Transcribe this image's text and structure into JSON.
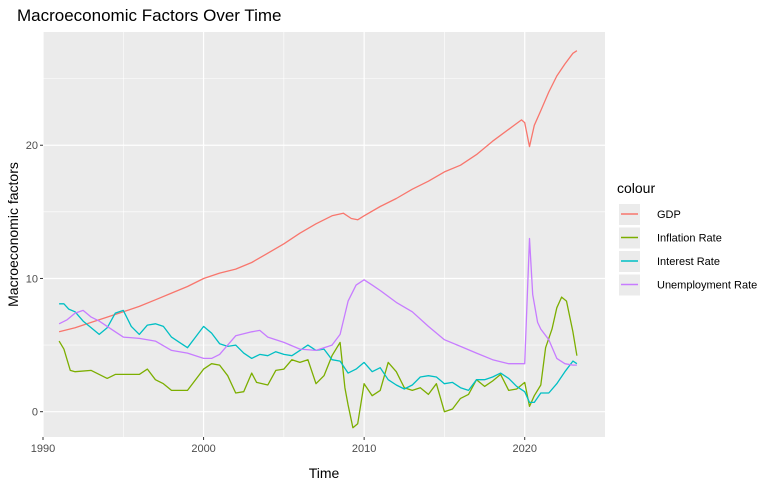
{
  "chart_data": {
    "type": "line",
    "title": "Macroeconomic Factors Over Time",
    "xlabel": "Time",
    "ylabel": "Macroeconomic factors",
    "xlim": [
      1990,
      2025
    ],
    "ylim": [
      -1.9,
      28.5
    ],
    "x_ticks": [
      1990,
      2000,
      2010,
      2020
    ],
    "y_ticks": [
      0,
      10,
      20
    ],
    "grid": true,
    "legend_title": "colour",
    "legend_position": "right",
    "series": [
      {
        "name": "GDP",
        "color": "#F8766D",
        "points": [
          [
            1991.0,
            6.0
          ],
          [
            1992.0,
            6.3
          ],
          [
            1993.0,
            6.7
          ],
          [
            1994.0,
            7.1
          ],
          [
            1995.0,
            7.5
          ],
          [
            1996.0,
            7.9
          ],
          [
            1997.0,
            8.4
          ],
          [
            1998.0,
            8.9
          ],
          [
            1999.0,
            9.4
          ],
          [
            2000.0,
            10.0
          ],
          [
            2001.0,
            10.4
          ],
          [
            2002.0,
            10.7
          ],
          [
            2003.0,
            11.2
          ],
          [
            2004.0,
            11.9
          ],
          [
            2005.0,
            12.6
          ],
          [
            2006.0,
            13.4
          ],
          [
            2007.0,
            14.1
          ],
          [
            2008.0,
            14.7
          ],
          [
            2008.7,
            14.9
          ],
          [
            2009.2,
            14.5
          ],
          [
            2009.6,
            14.4
          ],
          [
            2010.0,
            14.7
          ],
          [
            2011.0,
            15.4
          ],
          [
            2012.0,
            16.0
          ],
          [
            2013.0,
            16.7
          ],
          [
            2014.0,
            17.3
          ],
          [
            2015.0,
            18.0
          ],
          [
            2016.0,
            18.5
          ],
          [
            2017.0,
            19.3
          ],
          [
            2018.0,
            20.3
          ],
          [
            2019.0,
            21.2
          ],
          [
            2019.8,
            21.9
          ],
          [
            2020.0,
            21.7
          ],
          [
            2020.3,
            19.9
          ],
          [
            2020.6,
            21.5
          ],
          [
            2021.0,
            22.6
          ],
          [
            2021.5,
            24.0
          ],
          [
            2022.0,
            25.2
          ],
          [
            2022.5,
            26.1
          ],
          [
            2023.0,
            26.9
          ],
          [
            2023.25,
            27.1
          ]
        ]
      },
      {
        "name": "Inflation Rate",
        "color": "#7CAE00",
        "points": [
          [
            1991.0,
            5.3
          ],
          [
            1991.3,
            4.7
          ],
          [
            1991.7,
            3.1
          ],
          [
            1992.0,
            3.0
          ],
          [
            1993.0,
            3.1
          ],
          [
            1994.0,
            2.5
          ],
          [
            1994.5,
            2.8
          ],
          [
            1995.0,
            2.8
          ],
          [
            1996.0,
            2.8
          ],
          [
            1996.5,
            3.2
          ],
          [
            1997.0,
            2.4
          ],
          [
            1997.5,
            2.1
          ],
          [
            1998.0,
            1.6
          ],
          [
            1999.0,
            1.6
          ],
          [
            2000.0,
            3.2
          ],
          [
            2000.5,
            3.6
          ],
          [
            2001.0,
            3.5
          ],
          [
            2001.5,
            2.7
          ],
          [
            2002.0,
            1.4
          ],
          [
            2002.5,
            1.5
          ],
          [
            2003.0,
            2.9
          ],
          [
            2003.3,
            2.2
          ],
          [
            2004.0,
            2.0
          ],
          [
            2004.5,
            3.1
          ],
          [
            2005.0,
            3.2
          ],
          [
            2005.5,
            3.9
          ],
          [
            2006.0,
            3.7
          ],
          [
            2006.5,
            3.9
          ],
          [
            2007.0,
            2.1
          ],
          [
            2007.5,
            2.7
          ],
          [
            2008.0,
            4.2
          ],
          [
            2008.5,
            5.2
          ],
          [
            2008.8,
            1.8
          ],
          [
            2009.0,
            0.5
          ],
          [
            2009.3,
            -1.2
          ],
          [
            2009.6,
            -0.9
          ],
          [
            2010.0,
            2.1
          ],
          [
            2010.5,
            1.2
          ],
          [
            2011.0,
            1.6
          ],
          [
            2011.5,
            3.7
          ],
          [
            2012.0,
            3.0
          ],
          [
            2012.5,
            1.8
          ],
          [
            2013.0,
            1.6
          ],
          [
            2013.5,
            1.8
          ],
          [
            2014.0,
            1.3
          ],
          [
            2014.5,
            2.1
          ],
          [
            2015.0,
            0.0
          ],
          [
            2015.5,
            0.2
          ],
          [
            2016.0,
            1.0
          ],
          [
            2016.5,
            1.3
          ],
          [
            2017.0,
            2.4
          ],
          [
            2017.5,
            1.9
          ],
          [
            2018.0,
            2.3
          ],
          [
            2018.5,
            2.8
          ],
          [
            2019.0,
            1.6
          ],
          [
            2019.5,
            1.7
          ],
          [
            2020.0,
            2.2
          ],
          [
            2020.3,
            0.4
          ],
          [
            2020.6,
            1.2
          ],
          [
            2021.0,
            2.0
          ],
          [
            2021.3,
            4.8
          ],
          [
            2021.7,
            6.2
          ],
          [
            2022.0,
            7.8
          ],
          [
            2022.3,
            8.6
          ],
          [
            2022.6,
            8.3
          ],
          [
            2023.0,
            6.0
          ],
          [
            2023.25,
            4.2
          ]
        ]
      },
      {
        "name": "Interest Rate",
        "color": "#00BFC4",
        "points": [
          [
            1991.0,
            8.1
          ],
          [
            1991.3,
            8.1
          ],
          [
            1991.6,
            7.7
          ],
          [
            1992.0,
            7.5
          ],
          [
            1992.5,
            6.8
          ],
          [
            1993.0,
            6.3
          ],
          [
            1993.5,
            5.8
          ],
          [
            1994.0,
            6.3
          ],
          [
            1994.5,
            7.4
          ],
          [
            1995.0,
            7.6
          ],
          [
            1995.5,
            6.4
          ],
          [
            1996.0,
            5.8
          ],
          [
            1996.5,
            6.5
          ],
          [
            1997.0,
            6.6
          ],
          [
            1997.5,
            6.4
          ],
          [
            1998.0,
            5.6
          ],
          [
            1998.5,
            5.2
          ],
          [
            1999.0,
            4.8
          ],
          [
            1999.5,
            5.6
          ],
          [
            2000.0,
            6.4
          ],
          [
            2000.5,
            5.9
          ],
          [
            2001.0,
            5.1
          ],
          [
            2001.5,
            4.9
          ],
          [
            2002.0,
            5.0
          ],
          [
            2002.5,
            4.4
          ],
          [
            2003.0,
            4.0
          ],
          [
            2003.5,
            4.3
          ],
          [
            2004.0,
            4.2
          ],
          [
            2004.5,
            4.5
          ],
          [
            2005.0,
            4.3
          ],
          [
            2005.5,
            4.2
          ],
          [
            2006.0,
            4.6
          ],
          [
            2006.5,
            5.0
          ],
          [
            2007.0,
            4.6
          ],
          [
            2007.5,
            4.7
          ],
          [
            2008.0,
            3.9
          ],
          [
            2008.5,
            3.8
          ],
          [
            2009.0,
            2.9
          ],
          [
            2009.5,
            3.2
          ],
          [
            2010.0,
            3.7
          ],
          [
            2010.5,
            3.0
          ],
          [
            2011.0,
            3.3
          ],
          [
            2011.5,
            2.4
          ],
          [
            2012.0,
            2.0
          ],
          [
            2012.5,
            1.7
          ],
          [
            2013.0,
            2.0
          ],
          [
            2013.5,
            2.6
          ],
          [
            2014.0,
            2.7
          ],
          [
            2014.5,
            2.6
          ],
          [
            2015.0,
            2.1
          ],
          [
            2015.5,
            2.2
          ],
          [
            2016.0,
            1.8
          ],
          [
            2016.5,
            1.6
          ],
          [
            2017.0,
            2.4
          ],
          [
            2017.5,
            2.4
          ],
          [
            2018.0,
            2.6
          ],
          [
            2018.5,
            2.9
          ],
          [
            2019.0,
            2.5
          ],
          [
            2019.5,
            1.9
          ],
          [
            2020.0,
            1.5
          ],
          [
            2020.3,
            0.7
          ],
          [
            2020.6,
            0.7
          ],
          [
            2021.0,
            1.4
          ],
          [
            2021.5,
            1.4
          ],
          [
            2022.0,
            2.1
          ],
          [
            2022.5,
            3.0
          ],
          [
            2023.0,
            3.8
          ],
          [
            2023.25,
            3.6
          ]
        ]
      },
      {
        "name": "Unemployment Rate",
        "color": "#C77CFF",
        "points": [
          [
            1991.0,
            6.6
          ],
          [
            1991.5,
            6.9
          ],
          [
            1992.0,
            7.4
          ],
          [
            1992.5,
            7.6
          ],
          [
            1993.0,
            7.1
          ],
          [
            1993.5,
            6.8
          ],
          [
            1994.0,
            6.4
          ],
          [
            1994.5,
            6.0
          ],
          [
            1995.0,
            5.6
          ],
          [
            1996.0,
            5.5
          ],
          [
            1997.0,
            5.3
          ],
          [
            1998.0,
            4.6
          ],
          [
            1999.0,
            4.4
          ],
          [
            2000.0,
            4.0
          ],
          [
            2000.5,
            4.0
          ],
          [
            2001.0,
            4.3
          ],
          [
            2001.5,
            5.0
          ],
          [
            2002.0,
            5.7
          ],
          [
            2003.0,
            6.0
          ],
          [
            2003.5,
            6.1
          ],
          [
            2004.0,
            5.6
          ],
          [
            2005.0,
            5.2
          ],
          [
            2006.0,
            4.7
          ],
          [
            2007.0,
            4.6
          ],
          [
            2008.0,
            5.0
          ],
          [
            2008.5,
            5.8
          ],
          [
            2009.0,
            8.3
          ],
          [
            2009.5,
            9.5
          ],
          [
            2010.0,
            9.9
          ],
          [
            2010.5,
            9.5
          ],
          [
            2011.0,
            9.1
          ],
          [
            2012.0,
            8.2
          ],
          [
            2013.0,
            7.5
          ],
          [
            2014.0,
            6.4
          ],
          [
            2015.0,
            5.4
          ],
          [
            2016.0,
            4.9
          ],
          [
            2017.0,
            4.4
          ],
          [
            2018.0,
            3.9
          ],
          [
            2019.0,
            3.6
          ],
          [
            2020.0,
            3.6
          ],
          [
            2020.3,
            13.0
          ],
          [
            2020.5,
            8.8
          ],
          [
            2020.8,
            6.7
          ],
          [
            2021.0,
            6.2
          ],
          [
            2021.5,
            5.4
          ],
          [
            2022.0,
            4.0
          ],
          [
            2022.5,
            3.6
          ],
          [
            2023.0,
            3.5
          ],
          [
            2023.25,
            3.5
          ]
        ]
      }
    ]
  }
}
